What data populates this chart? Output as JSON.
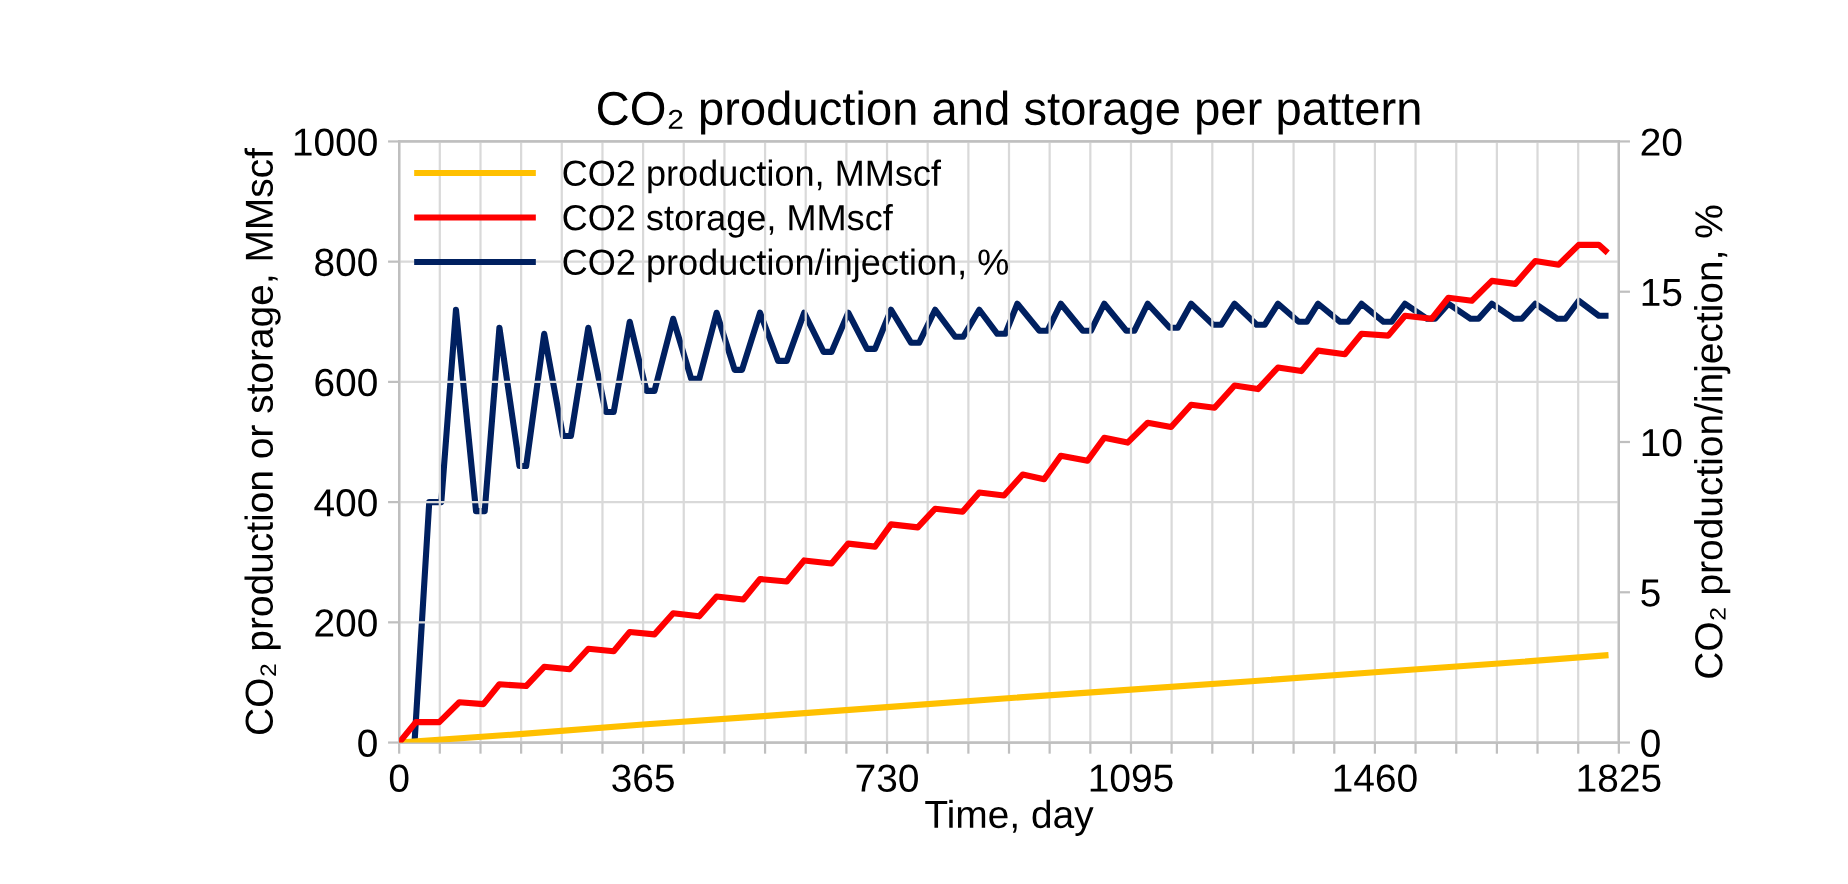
{
  "chart_data": {
    "type": "line",
    "title": "CO₂ production and storage per pattern",
    "xlabel": "Time, day",
    "ylabel": "CO₂ production or storage, MMscf",
    "y2label": "CO₂ production/injection, %",
    "xlim": [
      0,
      1825
    ],
    "xticks": [
      0,
      {
        "value": 60.8,
        "label": null
      },
      {
        "value": 121.7,
        "label": null
      },
      {
        "value": 182.5,
        "label": null
      },
      {
        "value": 243.3,
        "label": null
      },
      {
        "value": 304.2,
        "label": null
      },
      365,
      {
        "value": 425.8,
        "label": null
      },
      {
        "value": 486.7,
        "label": null
      },
      {
        "value": 547.5,
        "label": null
      },
      {
        "value": 608.3,
        "label": null
      },
      {
        "value": 669.2,
        "label": null
      },
      730,
      {
        "value": 790.8,
        "label": null
      },
      {
        "value": 851.7,
        "label": null
      },
      {
        "value": 912.5,
        "label": null
      },
      {
        "value": 973.3,
        "label": null
      },
      {
        "value": 1034.2,
        "label": null
      },
      1095,
      {
        "value": 1155.8,
        "label": null
      },
      {
        "value": 1216.7,
        "label": null
      },
      {
        "value": 1277.5,
        "label": null
      },
      {
        "value": 1338.3,
        "label": null
      },
      {
        "value": 1399.2,
        "label": null
      },
      1460,
      {
        "value": 1520.8,
        "label": null
      },
      {
        "value": 1581.7,
        "label": null
      },
      {
        "value": 1642.5,
        "label": null
      },
      {
        "value": 1703.3,
        "label": null
      },
      {
        "value": 1764.2,
        "label": null
      },
      1825
    ],
    "ylim": [
      0,
      1000
    ],
    "yticks": [
      0,
      200,
      400,
      600,
      800,
      1000
    ],
    "y2lim": [
      0,
      20
    ],
    "y2ticks": [
      0,
      5,
      10,
      15,
      20
    ],
    "grid": true,
    "legend": "top left",
    "line_style": "solid",
    "marker": "none",
    "series": [
      {
        "name": "CO2 production, MMscf",
        "color": "#ffc000",
        "x": [
          0,
          180,
          365,
          545,
          730,
          900,
          1095,
          1275,
          1460,
          1640,
          1805
        ],
        "values": [
          0,
          14,
          30,
          44,
          59,
          73,
          88,
          102,
          117,
          131,
          145
        ]
      },
      {
        "name": "CO2 storage, MMscf",
        "color": "#ff0000",
        "x": [
          0,
          25,
          60,
          90,
          126,
          150,
          190,
          217,
          255,
          283,
          321,
          345,
          382,
          410,
          449,
          475,
          515,
          540,
          580,
          606,
          647,
          672,
          712,
          736,
          776,
          802,
          843,
          868,
          905,
          933,
          965,
          990,
          1030,
          1055,
          1090,
          1120,
          1155,
          1185,
          1220,
          1250,
          1285,
          1315,
          1350,
          1375,
          1415,
          1440,
          1480,
          1505,
          1545,
          1570,
          1605,
          1635,
          1670,
          1700,
          1735,
          1765,
          1795,
          1805
        ],
        "values": [
          0,
          34,
          34,
          67,
          64,
          97,
          94,
          126,
          122,
          156,
          152,
          184,
          180,
          215,
          210,
          243,
          238,
          272,
          268,
          303,
          298,
          331,
          326,
          363,
          358,
          389,
          384,
          416,
          411,
          446,
          438,
          477,
          469,
          507,
          499,
          532,
          525,
          562,
          557,
          594,
          588,
          624,
          618,
          652,
          646,
          680,
          677,
          710,
          705,
          740,
          735,
          768,
          763,
          801,
          795,
          828,
          828,
          818
        ]
      },
      {
        "name": "CO2 production/injection, %",
        "color": "#002060",
        "axis": "y2",
        "x": [
          0,
          23,
          45,
          63,
          85,
          115,
          128,
          150,
          180,
          190,
          217,
          245,
          257,
          283,
          309,
          321,
          345,
          370,
          382,
          410,
          437,
          449,
          475,
          502,
          513,
          540,
          567,
          580,
          606,
          635,
          647,
          672,
          700,
          712,
          736,
          766,
          778,
          802,
          832,
          844,
          868,
          895,
          907,
          925,
          958,
          970,
          990,
          1023,
          1035,
          1055,
          1088,
          1100,
          1120,
          1153,
          1165,
          1185,
          1218,
          1230,
          1250,
          1283,
          1295,
          1315,
          1346,
          1358,
          1375,
          1408,
          1420,
          1440,
          1473,
          1485,
          1505,
          1538,
          1550,
          1570,
          1603,
          1615,
          1635,
          1668,
          1680,
          1700,
          1733,
          1745,
          1765,
          1795,
          1805
        ],
        "values": [
          0,
          0,
          8,
          8,
          14.4,
          7.7,
          7.7,
          13.8,
          9.2,
          9.2,
          13.6,
          10.2,
          10.2,
          13.8,
          11.0,
          11.0,
          14.0,
          11.7,
          11.7,
          14.1,
          12.1,
          12.1,
          14.3,
          12.4,
          12.4,
          14.3,
          12.7,
          12.7,
          14.3,
          13.0,
          13.0,
          14.3,
          13.1,
          13.1,
          14.4,
          13.3,
          13.3,
          14.4,
          13.5,
          13.5,
          14.4,
          13.6,
          13.6,
          14.6,
          13.7,
          13.7,
          14.6,
          13.7,
          13.7,
          14.6,
          13.7,
          13.7,
          14.6,
          13.8,
          13.8,
          14.6,
          13.9,
          13.9,
          14.6,
          13.9,
          13.9,
          14.6,
          14.0,
          14.0,
          14.6,
          14.0,
          14.0,
          14.6,
          14.0,
          14.0,
          14.6,
          14.1,
          14.1,
          14.6,
          14.1,
          14.1,
          14.6,
          14.1,
          14.1,
          14.6,
          14.1,
          14.1,
          14.7,
          14.2,
          14.2
        ]
      }
    ]
  }
}
